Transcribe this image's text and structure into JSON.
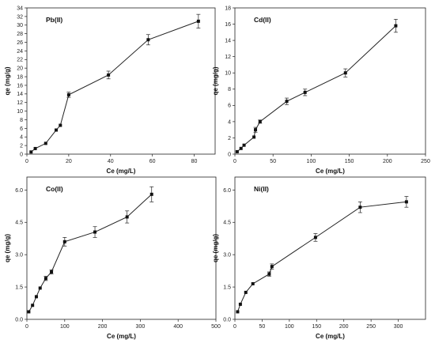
{
  "chart_data": [
    {
      "type": "line",
      "title": "Pb(II)",
      "xlabel": "Ce (mg/L)",
      "ylabel": "qe (mg/g)",
      "xlim": [
        0,
        90
      ],
      "ylim": [
        0,
        34
      ],
      "xticks": [
        0,
        20,
        40,
        60,
        80
      ],
      "yticks": [
        0,
        2,
        4,
        6,
        8,
        10,
        12,
        14,
        16,
        18,
        20,
        22,
        24,
        26,
        28,
        30,
        32,
        34
      ],
      "ytick_decimals": 0,
      "series": [
        {
          "x": [
            2,
            4,
            9,
            14,
            16,
            20,
            39,
            58,
            82
          ],
          "y": [
            0.5,
            1.3,
            2.5,
            5.6,
            6.7,
            13.8,
            18.4,
            26.6,
            30.9
          ],
          "err": [
            0,
            0,
            0,
            0,
            0,
            0.6,
            0.9,
            1.2,
            1.6
          ]
        }
      ]
    },
    {
      "type": "line",
      "title": "Cd(II)",
      "xlabel": "Ce (mg/L)",
      "ylabel": "qe (mg/g)",
      "xlim": [
        0,
        250
      ],
      "ylim": [
        0,
        18
      ],
      "xticks": [
        0,
        50,
        100,
        150,
        200,
        250
      ],
      "yticks": [
        0,
        2,
        4,
        6,
        8,
        10,
        12,
        14,
        16,
        18
      ],
      "ytick_decimals": 0,
      "series": [
        {
          "x": [
            3,
            8,
            12,
            25,
            27,
            33,
            68,
            92,
            145,
            211
          ],
          "y": [
            0.3,
            0.7,
            1.1,
            2.1,
            3.0,
            4.0,
            6.5,
            7.6,
            10.0,
            15.8
          ],
          "err": [
            0,
            0,
            0,
            0,
            0.3,
            0.2,
            0.4,
            0.4,
            0.5,
            0.8
          ]
        }
      ]
    },
    {
      "type": "line",
      "title": "Co(II)",
      "xlabel": "Ce (mg/L)",
      "ylabel": "qe (mg/g)",
      "xlim": [
        0,
        500
      ],
      "ylim": [
        0,
        6.6
      ],
      "xticks": [
        0,
        100,
        200,
        300,
        400,
        500
      ],
      "yticks": [
        0.0,
        1.5,
        3.0,
        4.5,
        6.0
      ],
      "ytick_decimals": 1,
      "series": [
        {
          "x": [
            5,
            15,
            25,
            35,
            50,
            65,
            100,
            180,
            265,
            330
          ],
          "y": [
            0.35,
            0.65,
            1.05,
            1.45,
            1.9,
            2.2,
            3.6,
            4.05,
            4.75,
            5.8
          ],
          "err": [
            0,
            0,
            0,
            0,
            0.1,
            0.1,
            0.2,
            0.25,
            0.28,
            0.35
          ]
        }
      ]
    },
    {
      "type": "line",
      "title": "Ni(II)",
      "xlabel": "Ce (mg/L)",
      "ylabel": "qe (mg/g)",
      "xlim": [
        0,
        350
      ],
      "ylim": [
        0,
        6.6
      ],
      "xticks": [
        0,
        50,
        100,
        150,
        200,
        250,
        300
      ],
      "yticks": [
        0.0,
        1.5,
        3.0,
        4.5,
        6.0
      ],
      "ytick_decimals": 1,
      "series": [
        {
          "x": [
            5,
            10,
            20,
            33,
            63,
            68,
            148,
            230,
            315
          ],
          "y": [
            0.35,
            0.7,
            1.25,
            1.65,
            2.1,
            2.45,
            3.8,
            5.2,
            5.45
          ],
          "err": [
            0,
            0,
            0,
            0,
            0.1,
            0.12,
            0.18,
            0.25,
            0.25
          ]
        }
      ]
    }
  ]
}
